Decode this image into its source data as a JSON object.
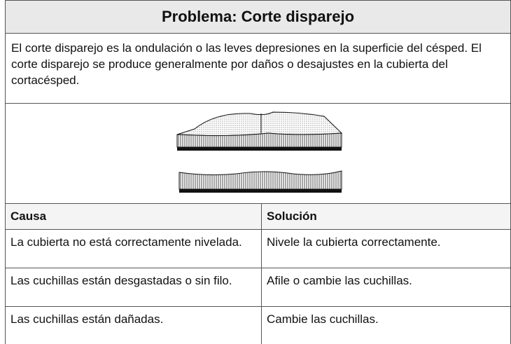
{
  "header": {
    "title": "Problema: Corte disparejo"
  },
  "description": "El corte disparejo es la ondulación o las leves depresiones en la superficie del césped. El corte disparejo se produce generalmente por daños o desajustes en la cubierta del cortacésped.",
  "table": {
    "headers": [
      "Causa",
      "Solución"
    ],
    "rows": [
      [
        "La cubierta no está correctamente nivelada.",
        "Nivele la cubierta correctamente."
      ],
      [
        "Las cuchillas están desgastadas o sin filo.",
        "Afile o cambie las cuchillas."
      ],
      [
        "Las cuchillas están dañadas.",
        "Cambie las cuchillas."
      ]
    ]
  }
}
